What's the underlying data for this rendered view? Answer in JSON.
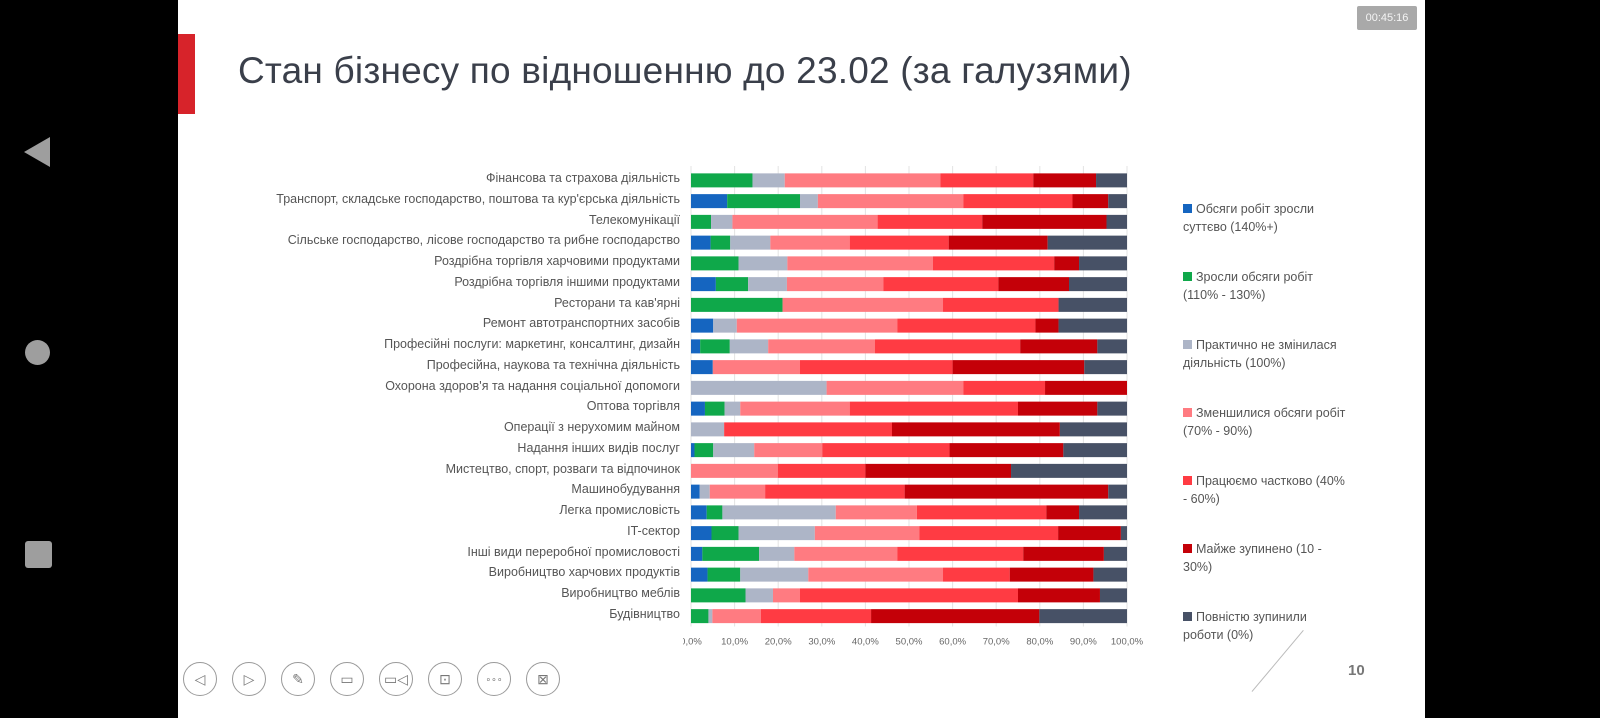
{
  "slide": {
    "title": "Стан бізнесу по відношенню до 23.02 (за галузями)",
    "timer": "00:45:16",
    "page_number": "10",
    "accent_color": "#d7232a"
  },
  "android_nav": {
    "back": "back-icon",
    "home": "home-icon",
    "recents": "recents-icon"
  },
  "toolbar": {
    "buttons": [
      {
        "name": "previous-slide",
        "icon": "◁"
      },
      {
        "name": "next-slide",
        "icon": "▷"
      },
      {
        "name": "pen",
        "icon": "✎"
      },
      {
        "name": "subtitles",
        "icon": "▭"
      },
      {
        "name": "video",
        "icon": "▭◁"
      },
      {
        "name": "laser-pointer",
        "icon": "⊡"
      },
      {
        "name": "more",
        "icon": "∘∘∘"
      },
      {
        "name": "end-show",
        "icon": "⊠"
      }
    ]
  },
  "chart_data": {
    "type": "bar",
    "orientation": "horizontal",
    "stacked": "percent",
    "title": "Стан бізнесу по відношенню до 23.02 (за галузями)",
    "xlabel": "",
    "ylabel": "",
    "xlim": [
      0,
      100
    ],
    "x_ticks": [
      "0,0%",
      "10,0%",
      "20,0%",
      "30,0%",
      "40,0%",
      "50,0%",
      "60,0%",
      "70,0%",
      "80,0%",
      "90,0%",
      "100,0%"
    ],
    "grid": "vertical",
    "legend_position": "right",
    "categories": [
      "Фінансова та страхова діяльність",
      "Транспорт, складське господарство, поштова та кур'єрська діяльність",
      "Телекомунікації",
      "Сільське господарство, лісове господарство та рибне господарство",
      "Роздрібна торгівля харчовими продуктами",
      "Роздрібна торгівля іншими продуктами",
      "Ресторани та кав'ярні",
      "Ремонт автотранспортних засобів",
      "Професійні послуги: маркетинг, консалтинг, дизайн",
      "Професійна, наукова та технічна діяльність",
      "Охорона здоров'я та надання соціальної допомоги",
      "Оптова торгівля",
      "Операції з нерухомим майном",
      "Надання інших видів послуг",
      "Мистецтво, спорт, розваги та відпочинок",
      "Машинобудування",
      "Легка промисловість",
      "IT-сектор",
      "Інші види переробної промисловості",
      "Виробництво харчових продуктів",
      "Виробництво меблів",
      "Будівництво"
    ],
    "series": [
      {
        "name": "Обсяги робіт зросли суттєво (140%+)",
        "color": "#1565c0",
        "values": [
          0,
          8.3,
          0,
          4.5,
          0,
          5.7,
          0,
          5.1,
          2.1,
          5.0,
          0,
          3.2,
          0,
          0.8,
          0,
          2.0,
          3.6,
          4.7,
          2.6,
          3.8,
          0,
          0
        ]
      },
      {
        "name": "Зросли обсяги робіт (110% - 130%)",
        "color": "#0fa84a",
        "values": [
          14.1,
          16.7,
          4.6,
          4.5,
          10.9,
          7.4,
          21.0,
          0,
          6.8,
          0,
          0,
          4.5,
          0,
          4.3,
          0,
          0,
          3.6,
          6.2,
          13.0,
          7.5,
          12.5,
          4.0
        ]
      },
      {
        "name": "Практично не змінилася діяльність (100%)",
        "color": "#adb5c7",
        "values": [
          7.4,
          4.1,
          4.9,
          9.2,
          11.2,
          8.9,
          0,
          5.4,
          8.8,
          0,
          31.1,
          3.6,
          7.6,
          9.4,
          0,
          2.3,
          26.0,
          17.5,
          8.1,
          15.6,
          6.3,
          0.9
        ]
      },
      {
        "name": "Зменшилися обсяги робіт (70% - 90%)",
        "color": "#ff7b81",
        "values": [
          35.7,
          33.4,
          33.3,
          18.2,
          33.4,
          22.1,
          36.8,
          36.8,
          24.5,
          20.0,
          31.4,
          25.1,
          0,
          15.6,
          19.9,
          12.7,
          18.6,
          24.0,
          23.6,
          30.9,
          6.2,
          11.1
        ]
      },
      {
        "name": "Працюємо частково (40% - 60%)",
        "color": "#ff3b43",
        "values": [
          21.3,
          25.0,
          24.0,
          22.7,
          27.8,
          26.4,
          26.5,
          31.7,
          33.3,
          35.0,
          18.7,
          38.6,
          38.5,
          29.2,
          20.1,
          32.0,
          29.7,
          31.8,
          28.9,
          15.3,
          50.0,
          25.3
        ]
      },
      {
        "name": "Майже зупинено (10 - 30%)",
        "color": "#c40008",
        "values": [
          14.4,
          8.2,
          28.5,
          22.7,
          5.7,
          16.2,
          0,
          5.3,
          17.7,
          30.2,
          18.8,
          18.2,
          38.5,
          26.1,
          33.4,
          46.7,
          7.5,
          14.4,
          18.5,
          19.2,
          18.8,
          38.6
        ]
      },
      {
        "name": "Повністю зупинили роботи (0%)",
        "color": "#475166",
        "values": [
          7.1,
          4.3,
          4.7,
          18.2,
          11.0,
          13.3,
          15.7,
          15.7,
          6.8,
          9.8,
          0,
          6.8,
          15.4,
          14.6,
          26.6,
          4.3,
          11.0,
          1.4,
          5.3,
          7.7,
          6.2,
          20.1
        ]
      }
    ]
  }
}
